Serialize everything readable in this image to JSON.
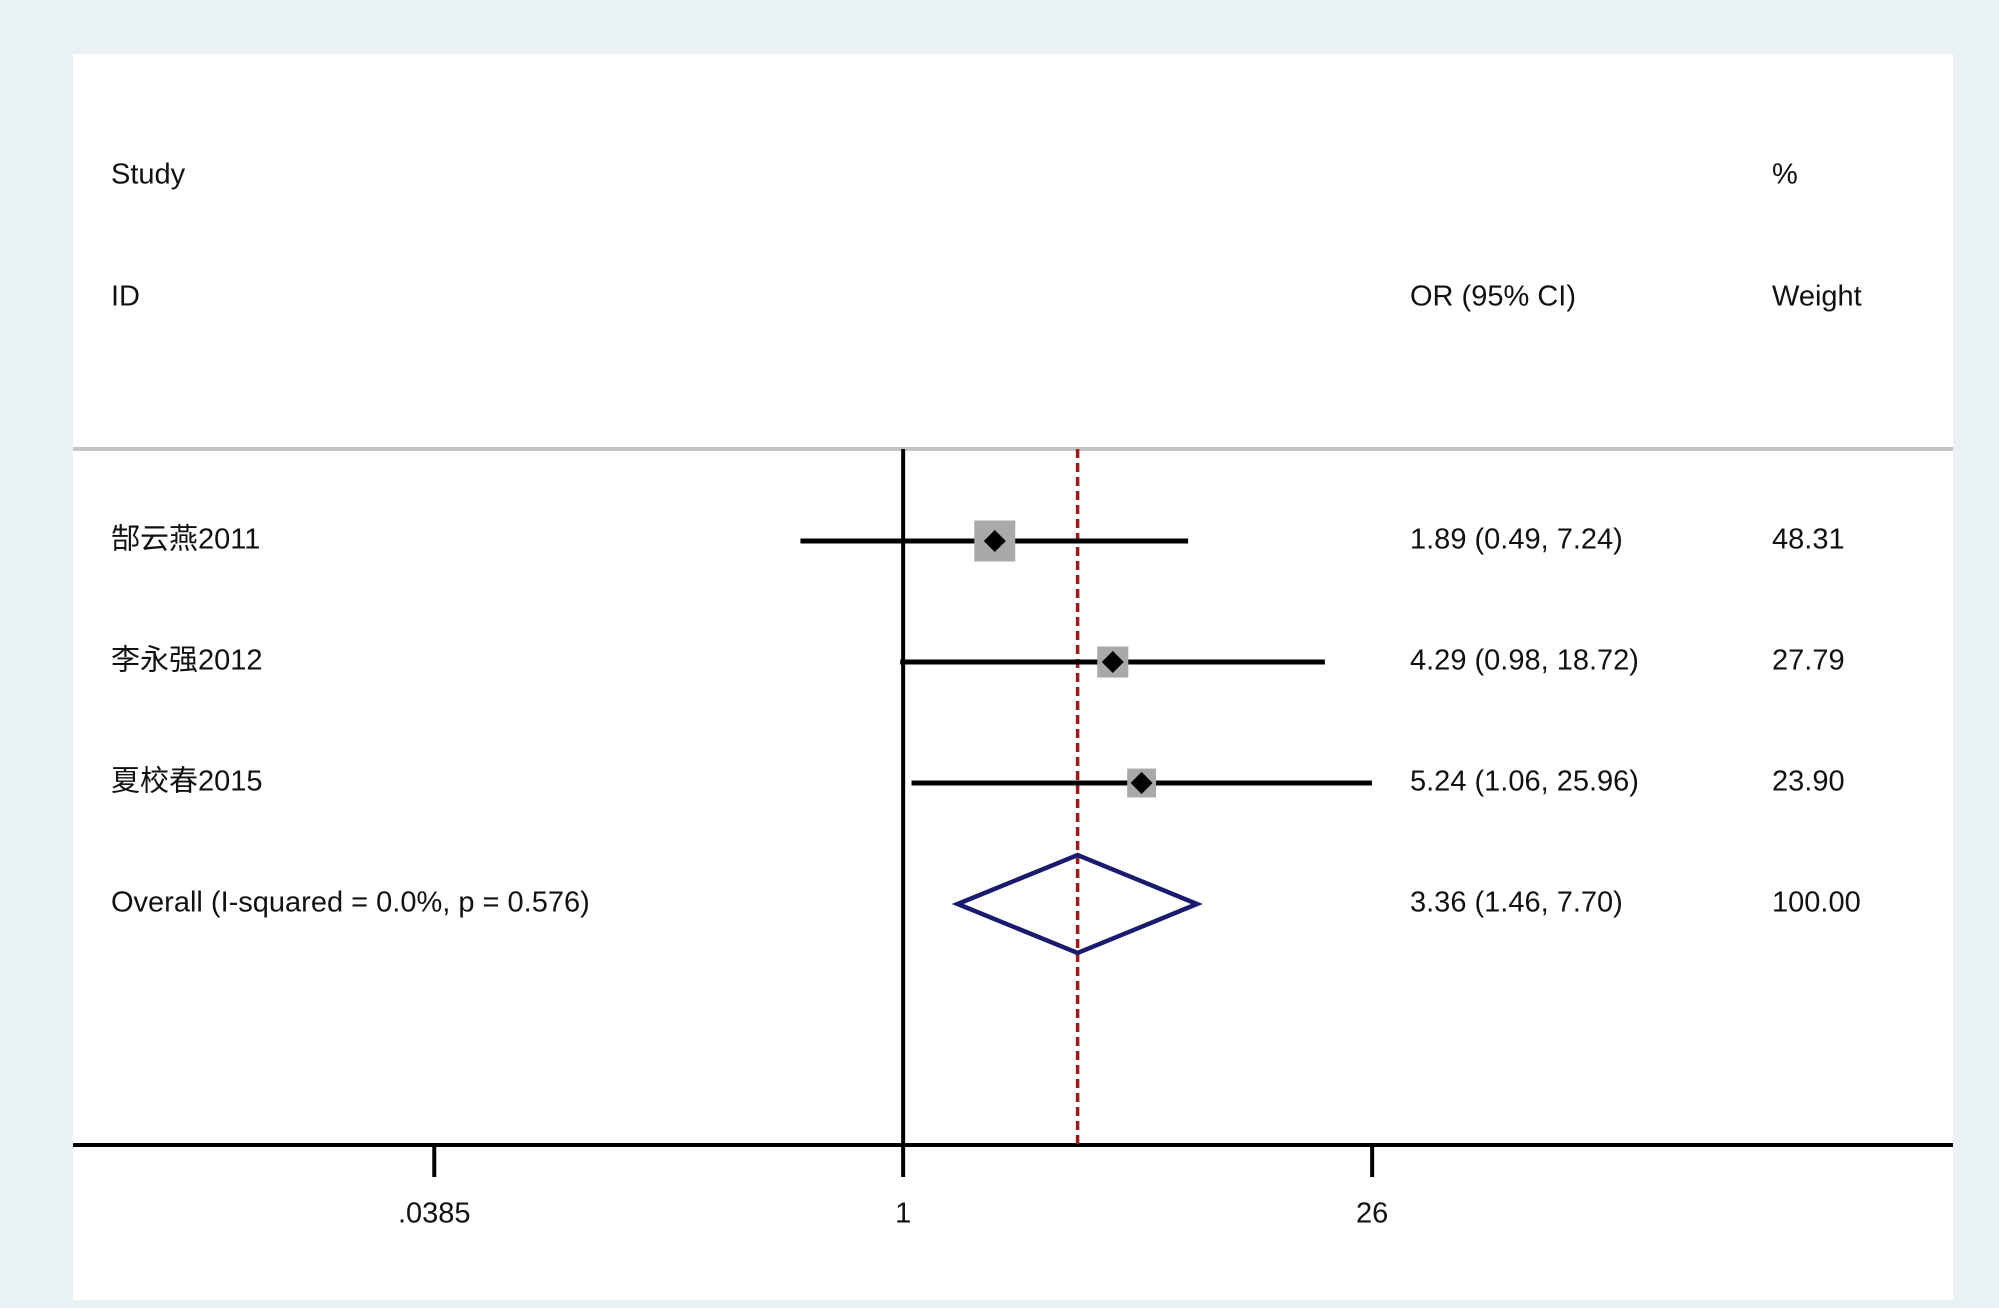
{
  "chart_data": {
    "type": "forest",
    "headers": {
      "study": "Study",
      "id": "ID",
      "effect": "OR (95% CI)",
      "percent": "%",
      "weight": "Weight"
    },
    "categories": [
      "郜云燕2011",
      "李永强2012",
      "夏校春2015"
    ],
    "values": [
      1.89,
      4.29,
      5.24
    ],
    "lower": [
      0.49,
      0.98,
      1.06
    ],
    "upper": [
      7.24,
      18.72,
      25.96
    ],
    "value_labels": [
      "1.89 (0.49, 7.24)",
      "4.29 (0.98, 18.72)",
      "5.24 (1.06, 25.96)"
    ],
    "weights": [
      48.31,
      27.79,
      23.9
    ],
    "weight_labels": [
      "48.31",
      "27.79",
      "23.90"
    ],
    "overall": {
      "label": "Overall  (I-squared = 0.0%, p = 0.576)",
      "value": 3.36,
      "lower": 1.46,
      "upper": 7.7,
      "value_label": "3.36 (1.46, 7.70)",
      "weight_label": "100.00"
    },
    "log_scale": true,
    "xlim": [
      0.00313,
      1470
    ],
    "xticks": [
      {
        "value": 0.0385,
        "label": ".0385"
      },
      1,
      26
    ],
    "colors": {
      "line": "#000000",
      "box": "#a9a9a9",
      "diamond": "#1a1a6e",
      "pooled": "#9b1b1b"
    }
  }
}
